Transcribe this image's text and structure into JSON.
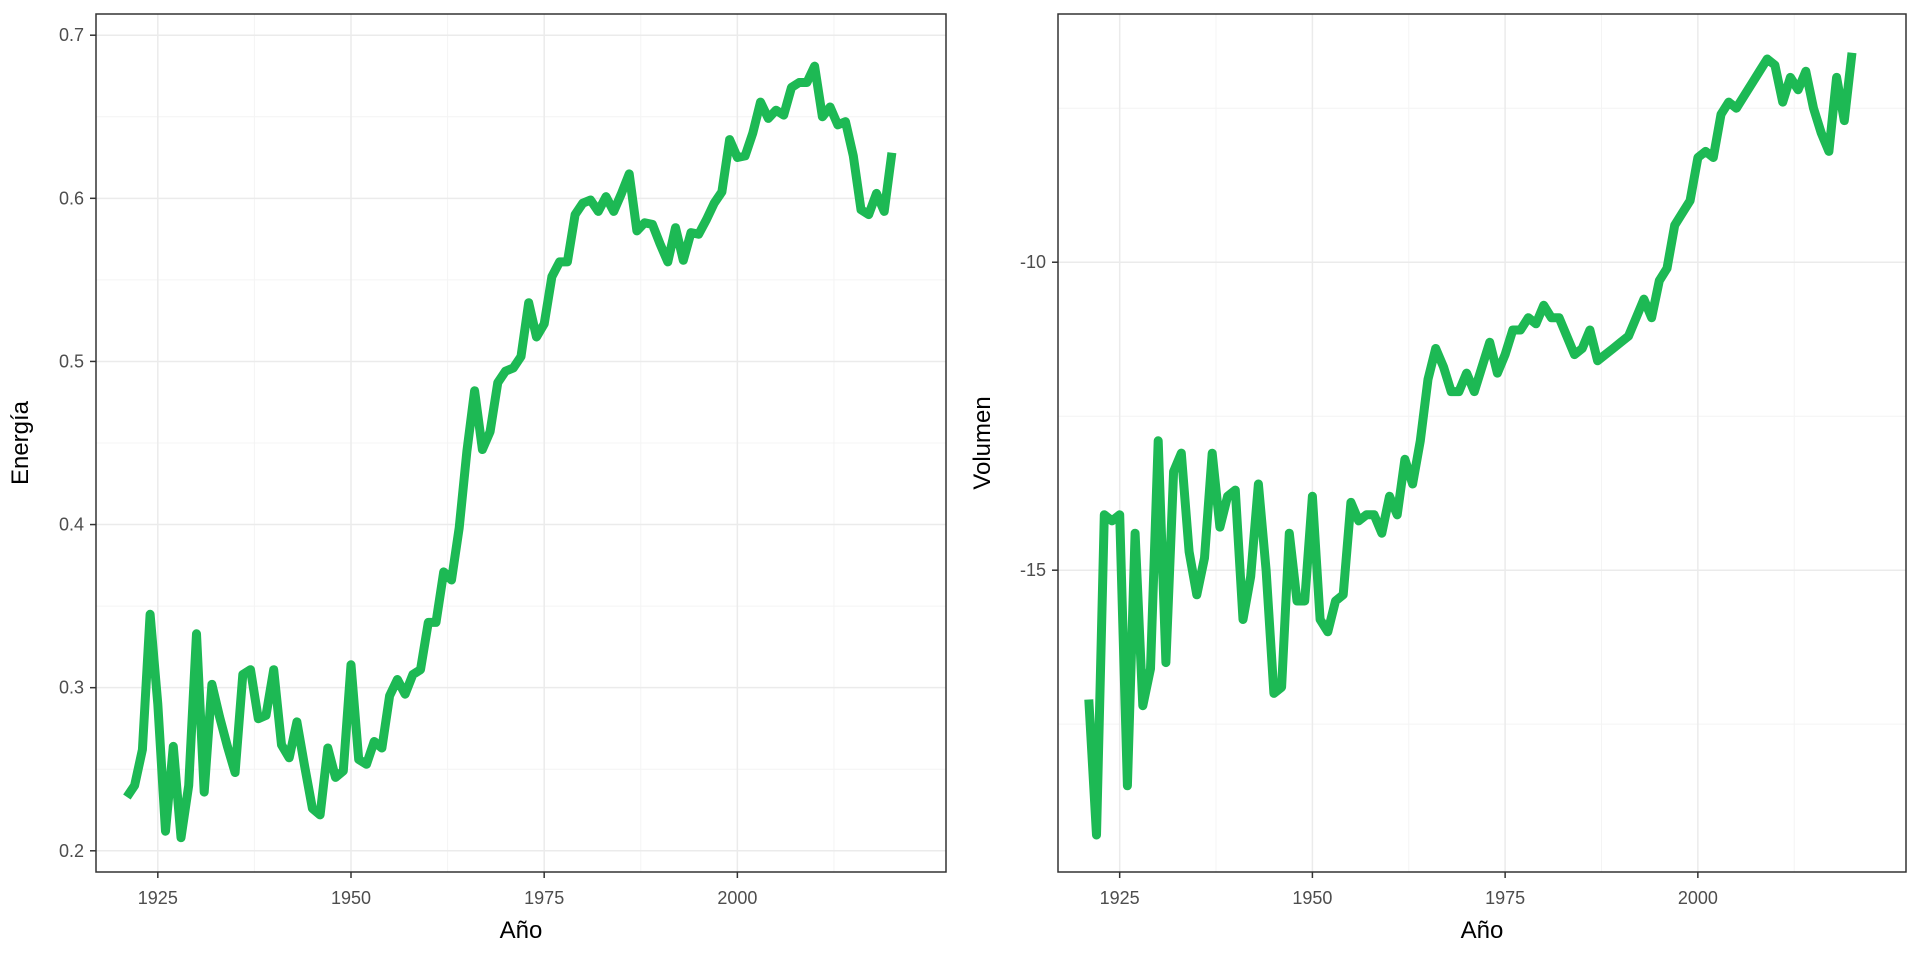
{
  "colors": {
    "line": "#1db954",
    "panel_border": "#333333",
    "grid_major": "#ebebeb",
    "grid_minor": "#f4f4f4",
    "background": "#ffffff"
  },
  "chart_data": [
    {
      "type": "line",
      "title": "",
      "xlabel": "Año",
      "ylabel": "Energía",
      "xlim": [
        1917,
        2027
      ],
      "ylim": [
        0.187,
        0.713
      ],
      "x_ticks": [
        1925,
        1950,
        1975,
        2000
      ],
      "y_ticks": [
        0.2,
        0.3,
        0.4,
        0.5,
        0.6,
        0.7
      ],
      "y_tick_labels": [
        "0.2",
        "0.3",
        "0.4",
        "0.5",
        "0.6",
        "0.7"
      ],
      "grid": true,
      "legend": "none",
      "series": [
        {
          "x": [
            1921,
            1922,
            1923,
            1924,
            1925,
            1926,
            1927,
            1928,
            1929,
            1930,
            1931,
            1932,
            1933,
            1934,
            1935,
            1936,
            1937,
            1938,
            1939,
            1940,
            1941,
            1942,
            1943,
            1944,
            1945,
            1946,
            1947,
            1948,
            1949,
            1950,
            1951,
            1952,
            1953,
            1954,
            1955,
            1956,
            1957,
            1958,
            1959,
            1960,
            1961,
            1962,
            1963,
            1964,
            1965,
            1966,
            1967,
            1968,
            1969,
            1970,
            1971,
            1972,
            1973,
            1974,
            1975,
            1976,
            1977,
            1978,
            1979,
            1980,
            1981,
            1982,
            1983,
            1984,
            1985,
            1986,
            1987,
            1988,
            1989,
            1990,
            1991,
            1992,
            1993,
            1994,
            1995,
            1996,
            1997,
            1998,
            1999,
            2000,
            2001,
            2002,
            2003,
            2004,
            2005,
            2006,
            2007,
            2008,
            2009,
            2010,
            2011,
            2012,
            2013,
            2014,
            2015,
            2016,
            2017,
            2018,
            2019,
            2020
          ],
          "y": [
            0.233,
            0.24,
            0.262,
            0.345,
            0.29,
            0.212,
            0.264,
            0.208,
            0.24,
            0.333,
            0.236,
            0.302,
            0.282,
            0.264,
            0.248,
            0.308,
            0.311,
            0.281,
            0.283,
            0.311,
            0.265,
            0.257,
            0.279,
            0.252,
            0.226,
            0.222,
            0.263,
            0.245,
            0.249,
            0.314,
            0.256,
            0.253,
            0.267,
            0.263,
            0.295,
            0.305,
            0.296,
            0.308,
            0.311,
            0.34,
            0.34,
            0.371,
            0.366,
            0.398,
            0.445,
            0.482,
            0.446,
            0.457,
            0.487,
            0.494,
            0.496,
            0.503,
            0.536,
            0.515,
            0.523,
            0.552,
            0.561,
            0.561,
            0.59,
            0.597,
            0.599,
            0.592,
            0.601,
            0.592,
            0.603,
            0.615,
            0.58,
            0.585,
            0.584,
            0.572,
            0.561,
            0.582,
            0.562,
            0.579,
            0.578,
            0.587,
            0.597,
            0.604,
            0.636,
            0.625,
            0.626,
            0.64,
            0.659,
            0.649,
            0.654,
            0.651,
            0.668,
            0.671,
            0.671,
            0.681,
            0.65,
            0.656,
            0.645,
            0.647,
            0.626,
            0.593,
            0.59,
            0.603,
            0.592,
            0.628
          ]
        }
      ]
    },
    {
      "type": "line",
      "title": "",
      "xlabel": "Año",
      "ylabel": "Volumen",
      "xlim": [
        1917,
        2027
      ],
      "ylim": [
        -19.9,
        -5.97
      ],
      "x_ticks": [
        1925,
        1950,
        1975,
        2000
      ],
      "y_ticks": [
        -10,
        -15
      ],
      "y_tick_labels": [
        "-10",
        "-15"
      ],
      "grid": true,
      "legend": "none",
      "series": [
        {
          "x": [
            1921,
            1922,
            1923,
            1924,
            1925,
            1926,
            1927,
            1928,
            1929,
            1930,
            1931,
            1932,
            1933,
            1934,
            1935,
            1936,
            1937,
            1938,
            1939,
            1940,
            1941,
            1942,
            1943,
            1944,
            1945,
            1946,
            1947,
            1948,
            1949,
            1950,
            1951,
            1952,
            1953,
            1954,
            1955,
            1956,
            1957,
            1958,
            1959,
            1960,
            1961,
            1962,
            1963,
            1964,
            1965,
            1966,
            1967,
            1968,
            1969,
            1970,
            1971,
            1972,
            1973,
            1974,
            1975,
            1976,
            1977,
            1978,
            1979,
            1980,
            1981,
            1982,
            1983,
            1984,
            1985,
            1986,
            1987,
            1988,
            1989,
            1990,
            1991,
            1992,
            1993,
            1994,
            1995,
            1996,
            1997,
            1998,
            1999,
            2000,
            2001,
            2002,
            2003,
            2004,
            2005,
            2006,
            2007,
            2008,
            2009,
            2010,
            2011,
            2012,
            2013,
            2014,
            2015,
            2016,
            2017,
            2018,
            2019,
            2020
          ],
          "y": [
            -17.1,
            -19.3,
            -14.1,
            -14.2,
            -14.1,
            -18.5,
            -14.4,
            -17.2,
            -16.6,
            -12.9,
            -16.5,
            -13.4,
            -13.1,
            -14.7,
            -15.4,
            -14.8,
            -13.1,
            -14.3,
            -13.8,
            -13.7,
            -15.8,
            -15.1,
            -13.6,
            -15.0,
            -17.0,
            -16.9,
            -14.4,
            -15.5,
            -15.5,
            -13.8,
            -15.8,
            -16.0,
            -15.5,
            -15.4,
            -13.9,
            -14.2,
            -14.1,
            -14.1,
            -14.4,
            -13.8,
            -14.1,
            -13.2,
            -13.6,
            -12.9,
            -11.9,
            -11.4,
            -11.7,
            -12.1,
            -12.1,
            -11.8,
            -12.1,
            -11.7,
            -11.3,
            -11.8,
            -11.5,
            -11.1,
            -11.1,
            -10.9,
            -11.0,
            -10.7,
            -10.9,
            -10.9,
            -11.2,
            -11.5,
            -11.4,
            -11.1,
            -11.6,
            -11.5,
            -11.4,
            -11.3,
            -11.2,
            -10.9,
            -10.6,
            -10.9,
            -10.3,
            -10.1,
            -9.4,
            -9.2,
            -9.0,
            -8.3,
            -8.2,
            -8.3,
            -7.6,
            -7.4,
            -7.5,
            -7.3,
            -7.1,
            -6.9,
            -6.7,
            -6.8,
            -7.4,
            -7.0,
            -7.2,
            -6.9,
            -7.5,
            -7.9,
            -8.2,
            -7.0,
            -7.7,
            -6.6
          ]
        }
      ]
    }
  ]
}
